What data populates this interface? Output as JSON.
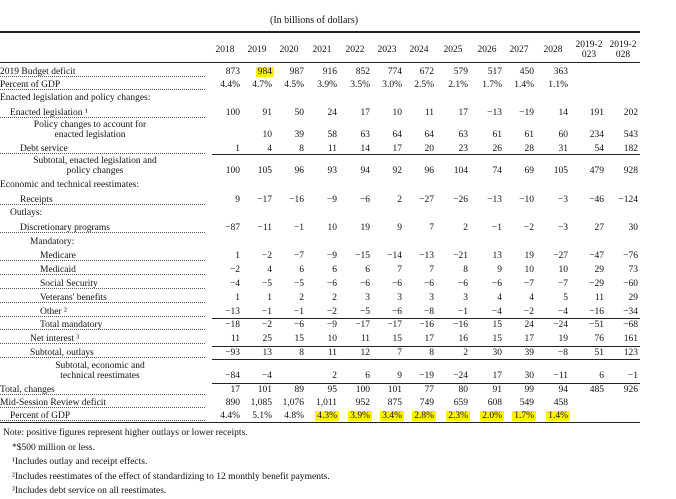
{
  "header": {
    "caption": "(In billions of dollars)",
    "columns": [
      "2018",
      "2019",
      "2020",
      "2021",
      "2022",
      "2023",
      "2024",
      "2025",
      "2026",
      "2027",
      "2028",
      "2019-2023",
      "2019-2028"
    ]
  },
  "table": {
    "rows": [
      {
        "label": "2019 Budget deficit",
        "values": [
          "873",
          "984",
          "987",
          "916",
          "852",
          "774",
          "672",
          "579",
          "517",
          "450",
          "363",
          null,
          null
        ]
      },
      {
        "label": "Percent of GDP",
        "values": [
          "4.4%",
          "4.7%",
          "4.5%",
          "3.9%",
          "3.5%",
          "3.0%",
          "2.5%",
          "2.1%",
          "1.7%",
          "1.4%",
          "1.1%",
          null,
          null
        ]
      },
      {
        "label": "Enacted legislation and policy changes:",
        "values": null
      },
      {
        "label": "Enacted legislation ¹",
        "values": [
          "100",
          "91",
          "50",
          "24",
          "17",
          "10",
          "11",
          "17",
          "−13",
          "−19",
          "14",
          "191",
          "202"
        ]
      },
      {
        "label": "Policy changes to account for enacted legislation",
        "values": [
          null,
          "10",
          "39",
          "58",
          "63",
          "64",
          "64",
          "63",
          "61",
          "61",
          "60",
          "234",
          "543"
        ]
      },
      {
        "label": "Debt service",
        "values": [
          "1",
          "4",
          "8",
          "11",
          "14",
          "17",
          "20",
          "23",
          "26",
          "28",
          "31",
          "54",
          "182"
        ]
      },
      {
        "label": "Subtotal, enacted legislation and policy changes",
        "values": [
          "100",
          "105",
          "96",
          "93",
          "94",
          "92",
          "96",
          "104",
          "74",
          "69",
          "105",
          "479",
          "928"
        ]
      },
      {
        "label": "Economic and technical reestimates:",
        "values": null
      },
      {
        "label": "Receipts",
        "values": [
          "9",
          "−17",
          "−16",
          "−9",
          "−6",
          "2",
          "−27",
          "−26",
          "−13",
          "−10",
          "−3",
          "−46",
          "−124"
        ]
      },
      {
        "label": "Outlays:",
        "values": null
      },
      {
        "label": "Discretionary programs",
        "values": [
          "−87",
          "−11",
          "−1",
          "10",
          "19",
          "9",
          "7",
          "2",
          "−1",
          "−2",
          "−3",
          "27",
          "30"
        ]
      },
      {
        "label": "Mandatory:",
        "values": null
      },
      {
        "label": "Medicare",
        "values": [
          "1",
          "−2",
          "−7",
          "−9",
          "−15",
          "−14",
          "−13",
          "−21",
          "13",
          "19",
          "−27",
          "−47",
          "−76"
        ]
      },
      {
        "label": "Medicaid",
        "values": [
          "−2",
          "4",
          "6",
          "6",
          "6",
          "7",
          "7",
          "8",
          "9",
          "10",
          "10",
          "29",
          "73"
        ]
      },
      {
        "label": "Social Security",
        "values": [
          "−4",
          "−5",
          "−5",
          "−6",
          "−6",
          "−6",
          "−6",
          "−6",
          "−6",
          "−7",
          "−7",
          "−29",
          "−60"
        ]
      },
      {
        "label": "Veterans' benefits",
        "values": [
          "1",
          "1",
          "2",
          "2",
          "3",
          "3",
          "3",
          "3",
          "4",
          "4",
          "5",
          "11",
          "29"
        ]
      },
      {
        "label": "Other ²",
        "values": [
          "−13",
          "−1",
          "−1",
          "−2",
          "−5",
          "−6",
          "−8",
          "−1",
          "−4",
          "−2",
          "−4",
          "−16",
          "−34"
        ]
      },
      {
        "label": "Total mandatory",
        "values": [
          "−18",
          "−2",
          "−6",
          "−9",
          "−17",
          "−17",
          "−16",
          "−16",
          "15",
          "24",
          "−24",
          "−51",
          "−68"
        ]
      },
      {
        "label": "Net interest ³",
        "values": [
          "11",
          "25",
          "15",
          "10",
          "11",
          "15",
          "17",
          "16",
          "15",
          "17",
          "19",
          "76",
          "161"
        ]
      },
      {
        "label": "Subtotal, outlays",
        "values": [
          "−93",
          "13",
          "8",
          "11",
          "12",
          "7",
          "8",
          "2",
          "30",
          "39",
          "−8",
          "51",
          "123"
        ]
      },
      {
        "label": "Subtotal, economic and technical reestimates",
        "values": [
          "−84",
          "−4",
          null,
          "2",
          "6",
          "9",
          "−19",
          "−24",
          "17",
          "30",
          "−11",
          "6",
          "−1"
        ]
      },
      {
        "label": "Total, changes",
        "values": [
          "17",
          "101",
          "89",
          "95",
          "100",
          "101",
          "77",
          "80",
          "91",
          "99",
          "94",
          "485",
          "926"
        ]
      },
      {
        "label": "Mid-Session Review deficit",
        "values": [
          "890",
          "1,085",
          "1,076",
          "1,011",
          "952",
          "875",
          "749",
          "659",
          "608",
          "549",
          "458",
          null,
          null
        ]
      },
      {
        "label": "Percent of GDP",
        "values": [
          "4.4%",
          "5.1%",
          "4.8%",
          "4.3%",
          "3.9%",
          "3.4%",
          "2.8%",
          "2.3%",
          "2.0%",
          "1.7%",
          "1.4%",
          null,
          null
        ]
      }
    ]
  },
  "notes": [
    "Note: positive figures represent higher outlays or lower receipts.",
    "*$500 million or less.",
    "¹Includes outlay and receipt effects.",
    "²Includes reestimates of the effect of standardizing to 12 monthly benefit payments.",
    "³Includes debt service on all reestimates."
  ]
}
